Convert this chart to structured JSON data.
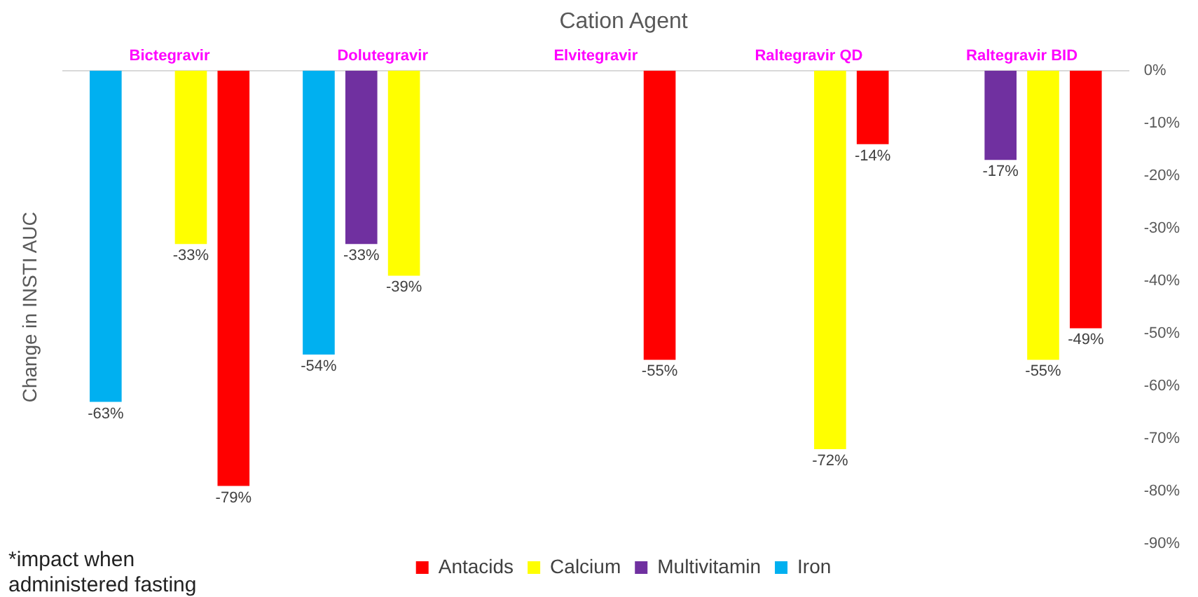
{
  "chart_data": {
    "type": "bar",
    "title": "Cation Agent",
    "ylabel": "Change in INSTI AUC",
    "categories": [
      "Bictegravir",
      "Dolutegravir",
      "Elvitegravir",
      "Raltegravir QD",
      "Raltegravir BID"
    ],
    "series": [
      {
        "name": "Iron",
        "color": "#00b0f0",
        "values": [
          -63,
          -54,
          null,
          null,
          null
        ],
        "value_labels": [
          "-63%",
          "-54%",
          null,
          null,
          null
        ]
      },
      {
        "name": "Multivitamin",
        "color": "#7030a0",
        "values": [
          null,
          -33,
          null,
          null,
          -17
        ],
        "value_labels": [
          null,
          "-33%",
          null,
          null,
          "-17%"
        ]
      },
      {
        "name": "Calcium",
        "color": "#ffff00",
        "values": [
          -33,
          -39,
          null,
          -72,
          -55
        ],
        "value_labels": [
          "-33%",
          "-39%",
          null,
          "-72%",
          "-55%"
        ]
      },
      {
        "name": "Antacids",
        "color": "#ff0000",
        "values": [
          -79,
          null,
          -55,
          -14,
          -49
        ],
        "value_labels": [
          "-79%",
          null,
          "-55%",
          "-14%",
          "-49%"
        ]
      }
    ],
    "ylim": [
      -90,
      0
    ],
    "yticks": [
      {
        "value": 0,
        "label": "0%"
      },
      {
        "value": -10,
        "label": "-10%"
      },
      {
        "value": -20,
        "label": "-20%"
      },
      {
        "value": -30,
        "label": "-30%"
      },
      {
        "value": -40,
        "label": "-40%"
      },
      {
        "value": -50,
        "label": "-50%"
      },
      {
        "value": -60,
        "label": "-60%"
      },
      {
        "value": -70,
        "label": "-70%"
      },
      {
        "value": -80,
        "label": "-80%"
      },
      {
        "value": -90,
        "label": "-90%"
      }
    ],
    "grid": false,
    "legend": "bottom",
    "annotations": [
      "*impact when administered fasting"
    ]
  }
}
